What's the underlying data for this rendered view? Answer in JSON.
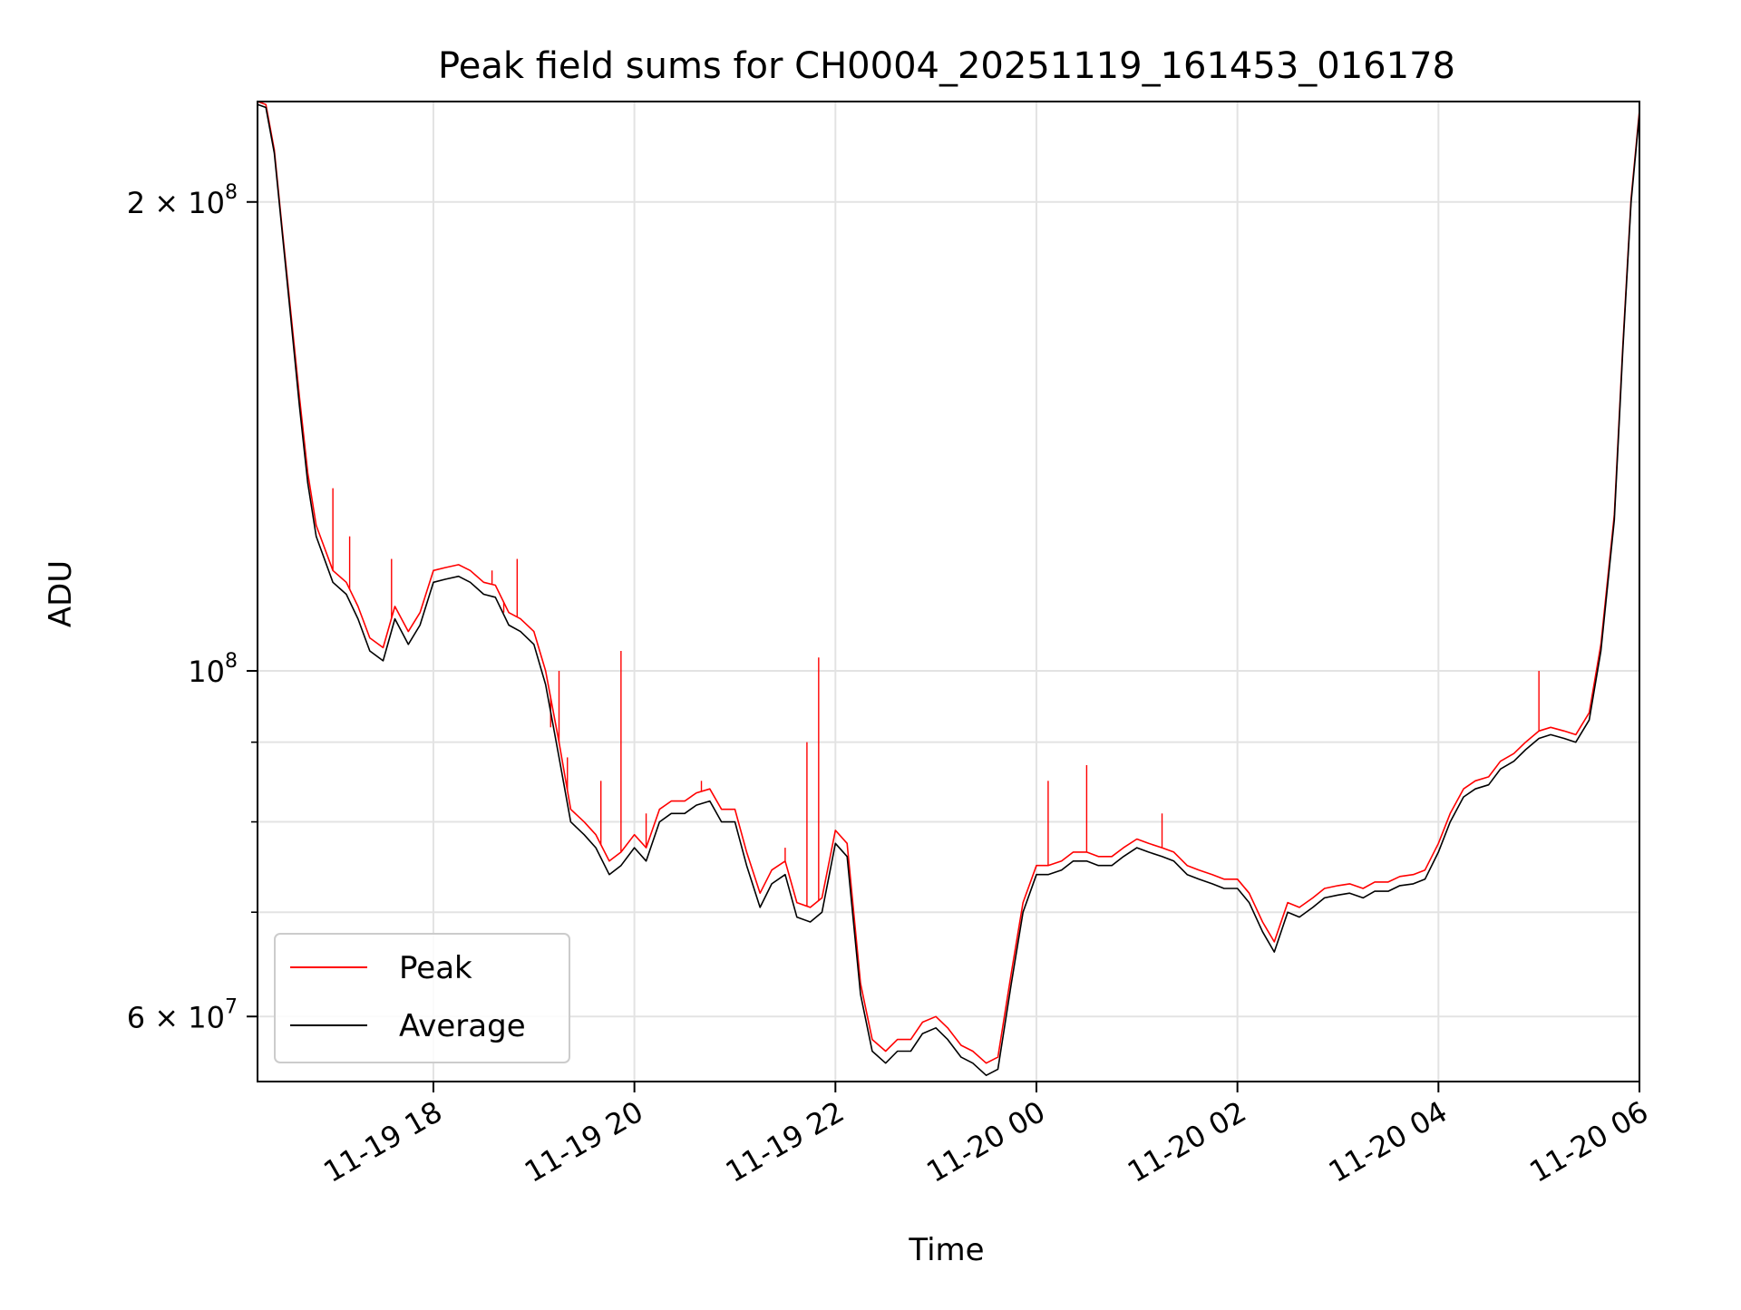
{
  "chart_data": {
    "type": "line",
    "title": "Peak field sums for CH0004_20251119_161453_016178",
    "xlabel": "Time",
    "ylabel": "ADU",
    "yscale": "log",
    "grid": true,
    "legend_placement": "lower-left",
    "xlim": [
      "2025-11-19T16:15",
      "2025-11-20T06:00"
    ],
    "ylim": [
      54500000,
      232000000
    ],
    "x_ticks": [
      {
        "t": "2025-11-19T18:00",
        "label": "11-19 18"
      },
      {
        "t": "2025-11-19T20:00",
        "label": "11-19 20"
      },
      {
        "t": "2025-11-19T22:00",
        "label": "11-19 22"
      },
      {
        "t": "2025-11-20T00:00",
        "label": "11-20 00"
      },
      {
        "t": "2025-11-20T02:00",
        "label": "11-20 02"
      },
      {
        "t": "2025-11-20T04:00",
        "label": "11-20 04"
      },
      {
        "t": "2025-11-20T06:00",
        "label": "11-20 06"
      }
    ],
    "y_ticks": [
      {
        "value": 60000000,
        "label": "6 × 10",
        "exp": "7"
      },
      {
        "value": 100000000,
        "label": "10",
        "exp": "8"
      },
      {
        "value": 200000000,
        "label": "2 × 10",
        "exp": "8"
      }
    ],
    "y_minor_ticks": [
      70000000,
      80000000,
      90000000
    ],
    "series": [
      {
        "name": "Average",
        "color": "#000000",
        "x": [
          "2025-11-19T16:15",
          "2025-11-19T16:20",
          "2025-11-19T16:25",
          "2025-11-19T16:30",
          "2025-11-19T16:35",
          "2025-11-19T16:40",
          "2025-11-19T16:45",
          "2025-11-19T16:50",
          "2025-11-19T17:00",
          "2025-11-19T17:08",
          "2025-11-19T17:15",
          "2025-11-19T17:22",
          "2025-11-19T17:30",
          "2025-11-19T17:37",
          "2025-11-19T17:45",
          "2025-11-19T17:52",
          "2025-11-19T18:00",
          "2025-11-19T18:07",
          "2025-11-19T18:15",
          "2025-11-19T18:22",
          "2025-11-19T18:30",
          "2025-11-19T18:37",
          "2025-11-19T18:45",
          "2025-11-19T18:52",
          "2025-11-19T19:00",
          "2025-11-19T19:07",
          "2025-11-19T19:15",
          "2025-11-19T19:22",
          "2025-11-19T19:30",
          "2025-11-19T19:37",
          "2025-11-19T19:45",
          "2025-11-19T19:52",
          "2025-11-19T20:00",
          "2025-11-19T20:07",
          "2025-11-19T20:15",
          "2025-11-19T20:22",
          "2025-11-19T20:30",
          "2025-11-19T20:37",
          "2025-11-19T20:45",
          "2025-11-19T20:52",
          "2025-11-19T21:00",
          "2025-11-19T21:07",
          "2025-11-19T21:15",
          "2025-11-19T21:22",
          "2025-11-19T21:30",
          "2025-11-19T21:37",
          "2025-11-19T21:45",
          "2025-11-19T21:52",
          "2025-11-19T22:00",
          "2025-11-19T22:07",
          "2025-11-19T22:15",
          "2025-11-19T22:22",
          "2025-11-19T22:30",
          "2025-11-19T22:37",
          "2025-11-19T22:45",
          "2025-11-19T22:52",
          "2025-11-19T23:00",
          "2025-11-19T23:07",
          "2025-11-19T23:15",
          "2025-11-19T23:22",
          "2025-11-19T23:30",
          "2025-11-19T23:37",
          "2025-11-19T23:45",
          "2025-11-19T23:52",
          "2025-11-20T00:00",
          "2025-11-20T00:07",
          "2025-11-20T00:15",
          "2025-11-20T00:22",
          "2025-11-20T00:30",
          "2025-11-20T00:37",
          "2025-11-20T00:45",
          "2025-11-20T00:52",
          "2025-11-20T01:00",
          "2025-11-20T01:07",
          "2025-11-20T01:15",
          "2025-11-20T01:22",
          "2025-11-20T01:30",
          "2025-11-20T01:37",
          "2025-11-20T01:45",
          "2025-11-20T01:52",
          "2025-11-20T02:00",
          "2025-11-20T02:07",
          "2025-11-20T02:15",
          "2025-11-20T02:22",
          "2025-11-20T02:30",
          "2025-11-20T02:37",
          "2025-11-20T02:45",
          "2025-11-20T02:52",
          "2025-11-20T03:00",
          "2025-11-20T03:07",
          "2025-11-20T03:15",
          "2025-11-20T03:22",
          "2025-11-20T03:30",
          "2025-11-20T03:37",
          "2025-11-20T03:45",
          "2025-11-20T03:52",
          "2025-11-20T04:00",
          "2025-11-20T04:07",
          "2025-11-20T04:15",
          "2025-11-20T04:22",
          "2025-11-20T04:30",
          "2025-11-20T04:37",
          "2025-11-20T04:45",
          "2025-11-20T04:52",
          "2025-11-20T05:00",
          "2025-11-20T05:07",
          "2025-11-20T05:15",
          "2025-11-20T05:22",
          "2025-11-20T05:30",
          "2025-11-20T05:37",
          "2025-11-20T05:45",
          "2025-11-20T05:50",
          "2025-11-20T05:55",
          "2025-11-20T06:00"
        ],
        "y": [
          231000000,
          230000000,
          215000000,
          190000000,
          168000000,
          148000000,
          132000000,
          122000000,
          114000000,
          112000000,
          108000000,
          103000000,
          101500000,
          108000000,
          104000000,
          107000000,
          114000000,
          114500000,
          115000000,
          114000000,
          112000000,
          111500000,
          107000000,
          106000000,
          104000000,
          98000000,
          88000000,
          80000000,
          78500000,
          77000000,
          74000000,
          75000000,
          77000000,
          75500000,
          80000000,
          81000000,
          81000000,
          82000000,
          82500000,
          80000000,
          80000000,
          75000000,
          70500000,
          73000000,
          74000000,
          69500000,
          69000000,
          70000000,
          77500000,
          76000000,
          62000000,
          57000000,
          56000000,
          57000000,
          57000000,
          58500000,
          59000000,
          58000000,
          56500000,
          56000000,
          55000000,
          55500000,
          63000000,
          70000000,
          74000000,
          74000000,
          74500000,
          75500000,
          75500000,
          75000000,
          75000000,
          76000000,
          77000000,
          76500000,
          76000000,
          75500000,
          74000000,
          73500000,
          73000000,
          72500000,
          72500000,
          71000000,
          68000000,
          66000000,
          70000000,
          69500000,
          70500000,
          71500000,
          71800000,
          72000000,
          71500000,
          72200000,
          72200000,
          72800000,
          73000000,
          73500000,
          76500000,
          80000000,
          83000000,
          84000000,
          84500000,
          86500000,
          87500000,
          89000000,
          90500000,
          91000000,
          90500000,
          90000000,
          93000000,
          103000000,
          125000000,
          160000000,
          200000000,
          228000000
        ]
      },
      {
        "name": "Peak",
        "color": "#ff0000",
        "x": [
          "2025-11-19T16:15",
          "2025-11-19T16:20",
          "2025-11-19T16:25",
          "2025-11-19T16:30",
          "2025-11-19T16:35",
          "2025-11-19T16:40",
          "2025-11-19T16:45",
          "2025-11-19T16:50",
          "2025-11-19T17:00",
          "2025-11-19T17:08",
          "2025-11-19T17:15",
          "2025-11-19T17:22",
          "2025-11-19T17:30",
          "2025-11-19T17:37",
          "2025-11-19T17:45",
          "2025-11-19T17:52",
          "2025-11-19T18:00",
          "2025-11-19T18:07",
          "2025-11-19T18:15",
          "2025-11-19T18:22",
          "2025-11-19T18:30",
          "2025-11-19T18:37",
          "2025-11-19T18:45",
          "2025-11-19T18:52",
          "2025-11-19T19:00",
          "2025-11-19T19:07",
          "2025-11-19T19:15",
          "2025-11-19T19:22",
          "2025-11-19T19:30",
          "2025-11-19T19:37",
          "2025-11-19T19:45",
          "2025-11-19T19:52",
          "2025-11-19T20:00",
          "2025-11-19T20:07",
          "2025-11-19T20:15",
          "2025-11-19T20:22",
          "2025-11-19T20:30",
          "2025-11-19T20:37",
          "2025-11-19T20:45",
          "2025-11-19T20:52",
          "2025-11-19T21:00",
          "2025-11-19T21:07",
          "2025-11-19T21:15",
          "2025-11-19T21:22",
          "2025-11-19T21:30",
          "2025-11-19T21:37",
          "2025-11-19T21:45",
          "2025-11-19T21:52",
          "2025-11-19T22:00",
          "2025-11-19T22:07",
          "2025-11-19T22:15",
          "2025-11-19T22:22",
          "2025-11-19T22:30",
          "2025-11-19T22:37",
          "2025-11-19T22:45",
          "2025-11-19T22:52",
          "2025-11-19T23:00",
          "2025-11-19T23:07",
          "2025-11-19T23:15",
          "2025-11-19T23:22",
          "2025-11-19T23:30",
          "2025-11-19T23:37",
          "2025-11-19T23:45",
          "2025-11-19T23:52",
          "2025-11-20T00:00",
          "2025-11-20T00:07",
          "2025-11-20T00:15",
          "2025-11-20T00:22",
          "2025-11-20T00:30",
          "2025-11-20T00:37",
          "2025-11-20T00:45",
          "2025-11-20T00:52",
          "2025-11-20T01:00",
          "2025-11-20T01:07",
          "2025-11-20T01:15",
          "2025-11-20T01:22",
          "2025-11-20T01:30",
          "2025-11-20T01:37",
          "2025-11-20T01:45",
          "2025-11-20T01:52",
          "2025-11-20T02:00",
          "2025-11-20T02:07",
          "2025-11-20T02:15",
          "2025-11-20T02:22",
          "2025-11-20T02:30",
          "2025-11-20T02:37",
          "2025-11-20T02:45",
          "2025-11-20T02:52",
          "2025-11-20T03:00",
          "2025-11-20T03:07",
          "2025-11-20T03:15",
          "2025-11-20T03:22",
          "2025-11-20T03:30",
          "2025-11-20T03:37",
          "2025-11-20T03:45",
          "2025-11-20T03:52",
          "2025-11-20T04:00",
          "2025-11-20T04:07",
          "2025-11-20T04:15",
          "2025-11-20T04:22",
          "2025-11-20T04:30",
          "2025-11-20T04:37",
          "2025-11-20T04:45",
          "2025-11-20T04:52",
          "2025-11-20T05:00",
          "2025-11-20T05:07",
          "2025-11-20T05:15",
          "2025-11-20T05:22",
          "2025-11-20T05:30",
          "2025-11-20T05:37",
          "2025-11-20T05:45",
          "2025-11-20T05:50",
          "2025-11-20T05:55",
          "2025-11-20T06:00"
        ],
        "y": [
          232000000,
          231000000,
          216000000,
          191000000,
          169500000,
          150000000,
          134000000,
          124000000,
          116000000,
          114000000,
          110000000,
          105000000,
          103500000,
          110000000,
          106000000,
          109000000,
          116000000,
          116500000,
          117000000,
          116000000,
          114000000,
          113500000,
          109000000,
          108000000,
          106000000,
          100000000,
          90000000,
          81500000,
          80000000,
          78500000,
          75500000,
          76500000,
          78500000,
          77000000,
          81500000,
          82500000,
          82500000,
          83500000,
          84000000,
          81500000,
          81500000,
          76500000,
          72000000,
          74500000,
          75500000,
          71000000,
          70500000,
          71500000,
          79000000,
          77500000,
          63000000,
          58000000,
          57000000,
          58000000,
          58000000,
          59500000,
          60000000,
          59000000,
          57500000,
          57000000,
          56000000,
          56500000,
          64000000,
          71000000,
          75000000,
          75000000,
          75500000,
          76500000,
          76500000,
          76000000,
          76000000,
          77000000,
          78000000,
          77500000,
          77000000,
          76500000,
          75000000,
          74500000,
          74000000,
          73500000,
          73500000,
          72000000,
          69000000,
          67000000,
          71000000,
          70500000,
          71500000,
          72500000,
          72800000,
          73000000,
          72500000,
          73200000,
          73200000,
          73800000,
          74000000,
          74500000,
          77500000,
          81000000,
          84000000,
          85000000,
          85500000,
          87500000,
          88500000,
          90000000,
          91500000,
          92000000,
          91500000,
          91000000,
          94000000,
          104000000,
          126000000,
          161000000,
          201000000,
          229000000
        ]
      }
    ],
    "peak_spikes": [
      {
        "t": "2025-11-19T17:00",
        "value": 131000000
      },
      {
        "t": "2025-11-19T17:10",
        "value": 122000000
      },
      {
        "t": "2025-11-19T17:35",
        "value": 118000000
      },
      {
        "t": "2025-11-19T18:35",
        "value": 116000000
      },
      {
        "t": "2025-11-19T18:42",
        "value": 109000000
      },
      {
        "t": "2025-11-19T18:50",
        "value": 118000000
      },
      {
        "t": "2025-11-19T19:10",
        "value": 92000000
      },
      {
        "t": "2025-11-19T19:15",
        "value": 100000000
      },
      {
        "t": "2025-11-19T19:20",
        "value": 88000000
      },
      {
        "t": "2025-11-19T19:40",
        "value": 85000000
      },
      {
        "t": "2025-11-19T19:52",
        "value": 103000000
      },
      {
        "t": "2025-11-19T20:07",
        "value": 81000000
      },
      {
        "t": "2025-11-19T20:40",
        "value": 85000000
      },
      {
        "t": "2025-11-19T21:30",
        "value": 77000000
      },
      {
        "t": "2025-11-19T21:43",
        "value": 90000000
      },
      {
        "t": "2025-11-19T21:50",
        "value": 102000000
      },
      {
        "t": "2025-11-20T00:07",
        "value": 85000000
      },
      {
        "t": "2025-11-20T00:30",
        "value": 87000000
      },
      {
        "t": "2025-11-20T01:15",
        "value": 81000000
      },
      {
        "t": "2025-11-20T05:00",
        "value": 100000000
      }
    ]
  }
}
